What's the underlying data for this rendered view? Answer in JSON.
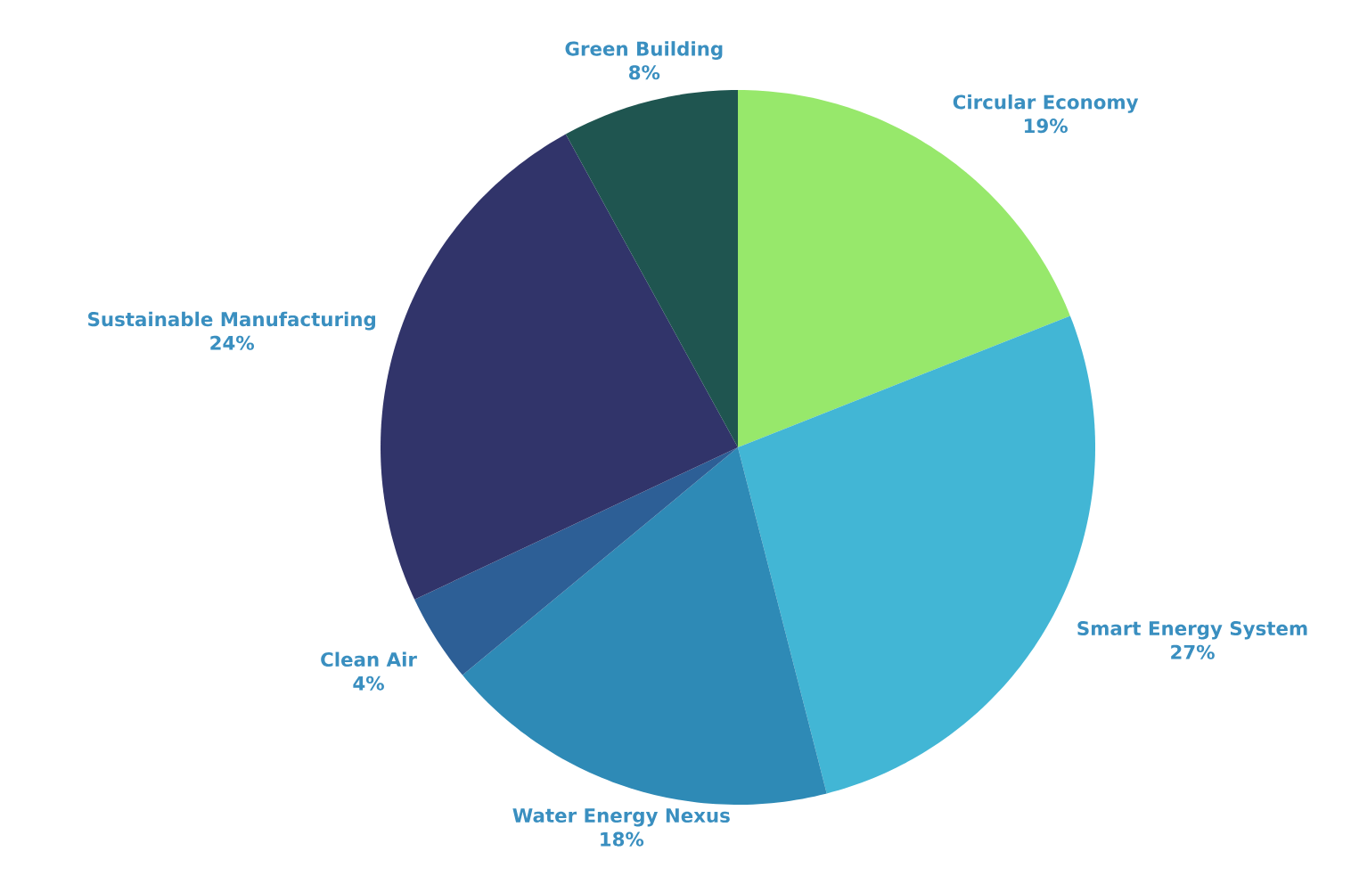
{
  "chart_data": {
    "type": "pie",
    "categories": [
      "Circular Economy",
      "Smart Energy System",
      "Water Energy Nexus",
      "Clean Air",
      "Sustainable Manufacturing",
      "Green Building"
    ],
    "values": [
      19,
      27,
      18,
      4,
      24,
      8
    ],
    "value_labels": [
      "19%",
      "27%",
      "18%",
      "4%",
      "24%",
      "8%"
    ],
    "colors": [
      "#97e86b",
      "#42b6d5",
      "#2e8ab6",
      "#2d5f96",
      "#31346a",
      "#1f5550"
    ]
  }
}
